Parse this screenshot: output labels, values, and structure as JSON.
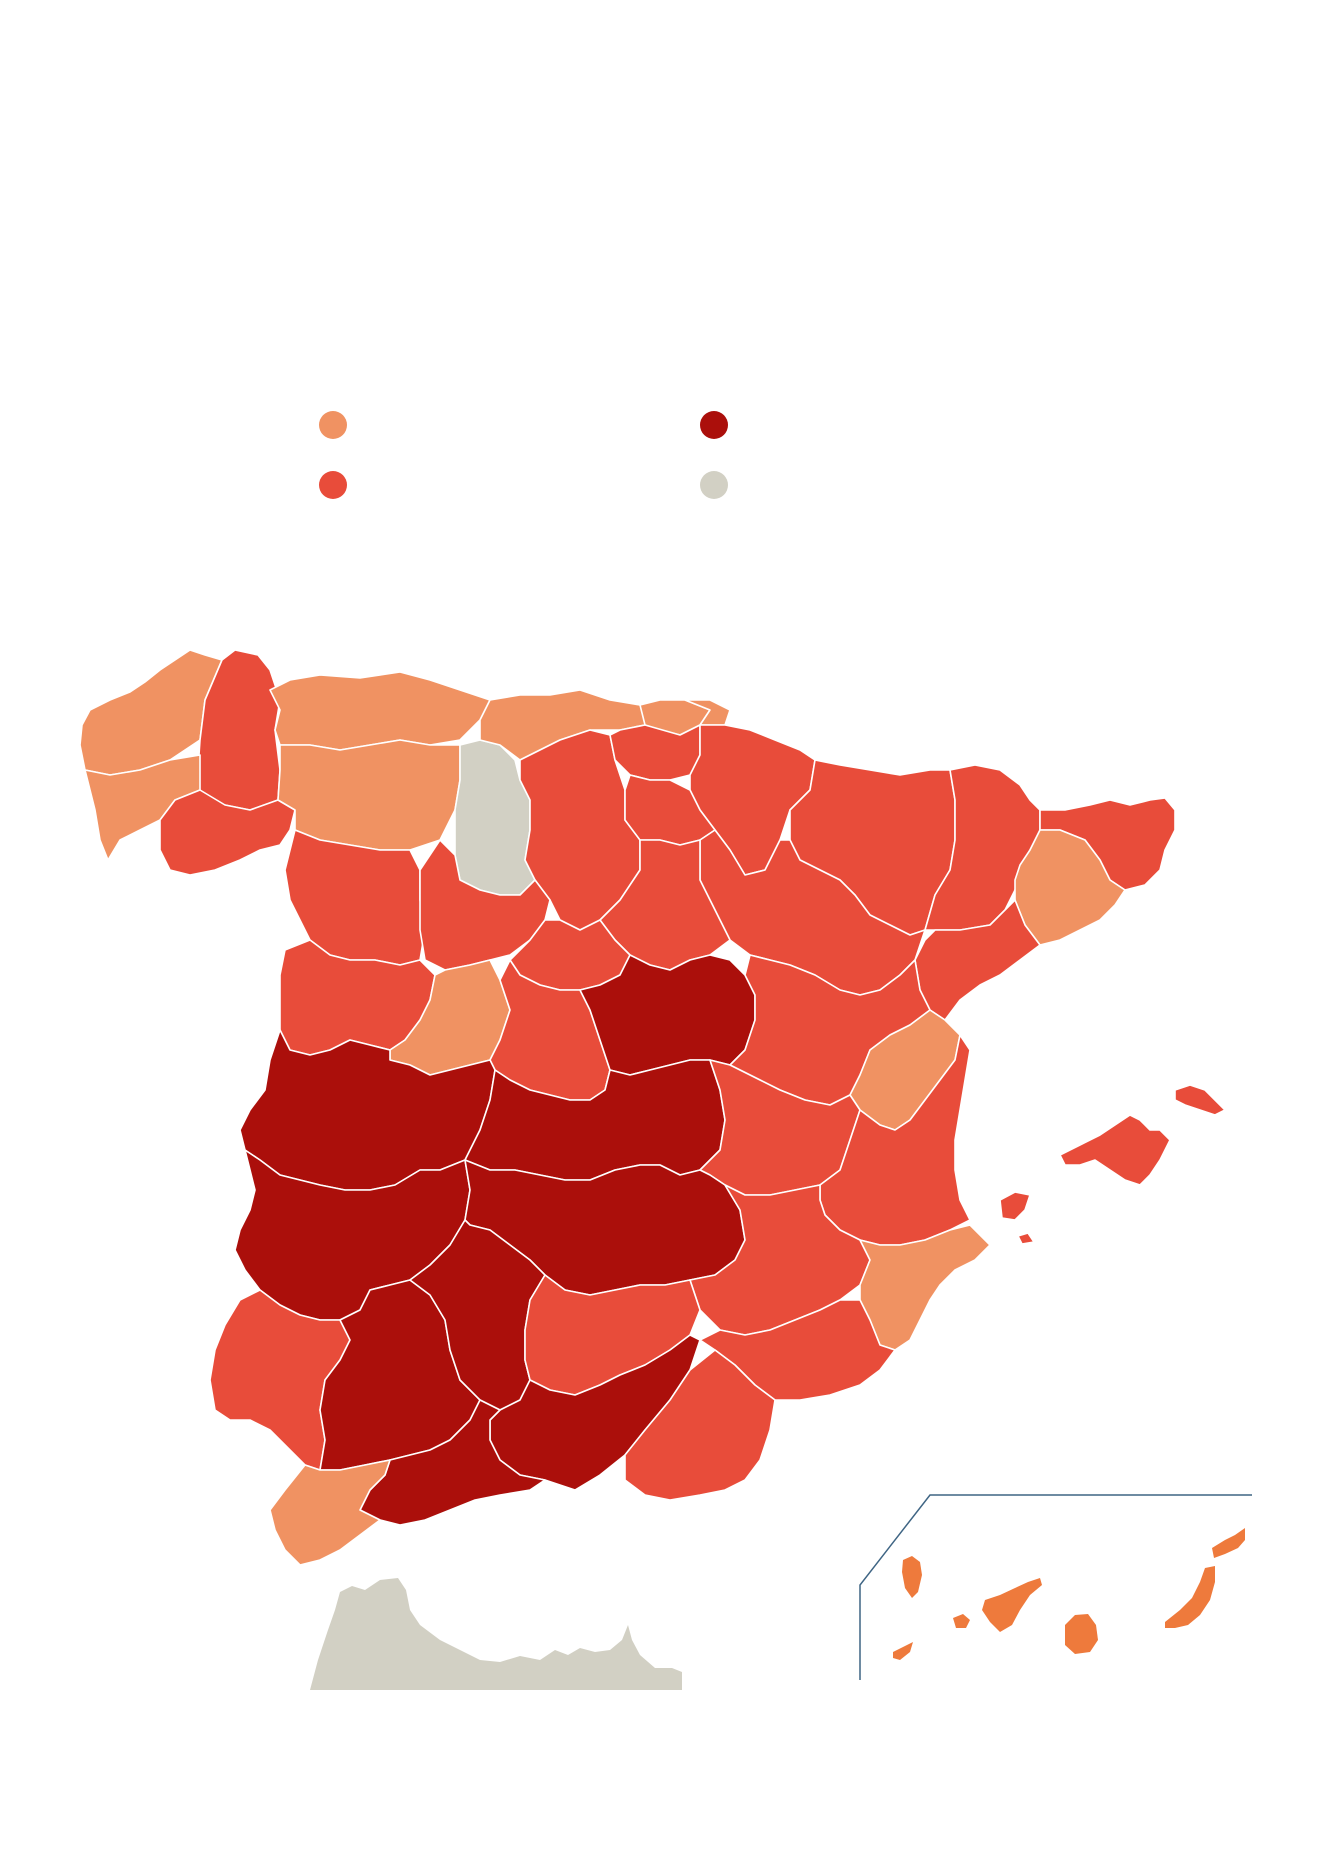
{
  "legend": {
    "items": [
      {
        "color": "#F09262",
        "label": ""
      },
      {
        "color": "#AB0F0B",
        "label": ""
      },
      {
        "color": "#E84C3A",
        "label": ""
      },
      {
        "color": "#D2D0C4",
        "label": ""
      }
    ]
  },
  "colors": {
    "light": "#F09262",
    "medium": "#E84C3A",
    "dark": "#AB0F0B",
    "nodata": "#D2D0C4",
    "canarias": "#EE7A3C",
    "inset_frame": "#3F6584"
  }
}
